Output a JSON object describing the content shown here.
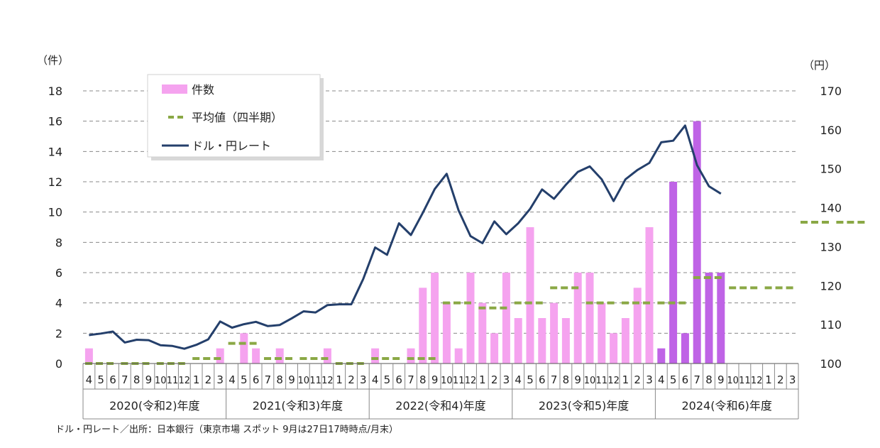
{
  "chart_data": {
    "type": "bar",
    "left_axis": {
      "unit_label": "（件）",
      "ticks": [
        0,
        2,
        4,
        6,
        8,
        10,
        12,
        14,
        16,
        18
      ],
      "ylim": [
        0,
        18
      ]
    },
    "right_axis": {
      "unit_label": "（円）",
      "ticks": [
        100,
        110,
        120,
        130,
        140,
        150,
        160,
        170
      ],
      "ylim": [
        100,
        170
      ]
    },
    "month_labels": [
      "4",
      "5",
      "6",
      "7",
      "8",
      "9",
      "10",
      "11",
      "12",
      "1",
      "2",
      "3",
      "4",
      "5",
      "6",
      "7",
      "8",
      "9",
      "10",
      "11",
      "12",
      "1",
      "2",
      "3",
      "4",
      "5",
      "6",
      "7",
      "8",
      "9",
      "10",
      "11",
      "12",
      "1",
      "2",
      "3",
      "4",
      "5",
      "6",
      "7",
      "8",
      "9",
      "10",
      "11",
      "12",
      "1",
      "2",
      "3",
      "4",
      "5",
      "6",
      "7",
      "8",
      "9",
      "10",
      "11",
      "12",
      "1",
      "2",
      "3"
    ],
    "year_labels": [
      "2020(令和2)年度",
      "2021(令和3)年度",
      "2022(令和4)年度",
      "2023(令和5)年度",
      "2024(令和6)年度"
    ],
    "legend": [
      {
        "name": "件数",
        "kind": "bar"
      },
      {
        "name": "平均値（四半期）",
        "kind": "dash"
      },
      {
        "name": "ドル・円レート",
        "kind": "line"
      }
    ],
    "series": [
      {
        "name": "件数",
        "values": [
          1,
          0,
          0,
          0,
          0,
          0,
          0,
          0,
          0,
          0,
          0,
          1,
          0,
          2,
          1,
          0,
          1,
          0,
          0,
          0,
          1,
          0,
          0,
          0,
          1,
          0,
          0,
          1,
          5,
          6,
          4,
          1,
          6,
          4,
          2,
          6,
          3,
          9,
          3,
          4,
          3,
          6,
          6,
          4,
          2,
          3,
          5,
          9,
          1,
          12,
          2,
          16,
          6,
          6
        ]
      },
      {
        "name": "平均値（四半期）",
        "quarters": [
          0,
          0,
          0,
          0.33,
          1.33,
          0.33,
          0.33,
          0,
          0.33,
          0.33,
          4,
          3.67,
          4,
          5,
          4,
          4,
          4,
          5.67,
          5,
          5,
          9.33,
          9.33
        ]
      },
      {
        "name": "ドル・円レート",
        "values": [
          107.3,
          107.7,
          108.2,
          105.4,
          106.1,
          106.0,
          104.7,
          104.5,
          103.8,
          104.8,
          106.2,
          110.8,
          109.2,
          110.1,
          110.7,
          109.6,
          109.9,
          111.6,
          113.4,
          113.1,
          115.0,
          115.2,
          115.2,
          121.7,
          129.8,
          127.9,
          136.0,
          133.0,
          138.7,
          144.8,
          148.7,
          139.3,
          132.7,
          130.9,
          136.5,
          133.2,
          136.0,
          139.7,
          144.7,
          142.3,
          145.9,
          149.2,
          150.6,
          147.3,
          141.7,
          147.3,
          149.7,
          151.5,
          156.8,
          157.2,
          161.1,
          150.9,
          145.5,
          143.6
        ]
      }
    ],
    "highlight_from_index": 48,
    "colors": {
      "bar": "#f5a3ef",
      "bar_highlight": "#bf63e6",
      "average": "#8aa845",
      "line": "#243f6b",
      "grid": "#888888"
    }
  },
  "footer": {
    "source": "ドル・円レート／出所：日本銀行（東京市場 スポット 9月は27日17時時点/月末）"
  }
}
